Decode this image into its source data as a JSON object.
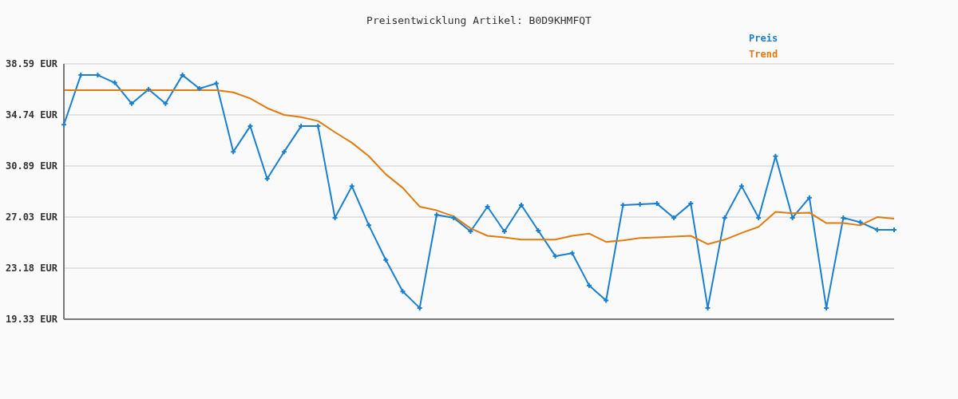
{
  "chart_data": {
    "type": "line",
    "title": "Preisentwicklung Artikel: B0D9KHMFQT",
    "categories": [
      null,
      null,
      null,
      null,
      null,
      null,
      null,
      null,
      null,
      null,
      null,
      null,
      null,
      null,
      null,
      null,
      null,
      null,
      null,
      null,
      null,
      null,
      null,
      null,
      null,
      null,
      null,
      null,
      null,
      null,
      null,
      null,
      null,
      null,
      null,
      null,
      null,
      null,
      null,
      null,
      null,
      null,
      null,
      null,
      null,
      null,
      null,
      null,
      null,
      null
    ],
    "series": [
      {
        "name": "Preis",
        "color": "#1a7fcf",
        "marker": "cross",
        "values": [
          34.0,
          37.74,
          37.74,
          37.17,
          35.59,
          36.66,
          35.59,
          37.74,
          36.72,
          37.12,
          31.96,
          33.89,
          29.92,
          31.96,
          33.89,
          33.89,
          26.98,
          29.36,
          26.41,
          23.8,
          21.42,
          20.18,
          27.2,
          26.98,
          25.95,
          27.82,
          25.95,
          27.94,
          26.01,
          24.09,
          24.31,
          21.88,
          20.74,
          27.94,
          27.99,
          28.05,
          26.98,
          28.05,
          20.18,
          26.98,
          29.36,
          26.98,
          31.62,
          26.98,
          28.5,
          20.18,
          26.98,
          26.64,
          26.07,
          26.07
        ]
      },
      {
        "name": "Trend",
        "color": "#e07b10",
        "marker": "none",
        "values": [
          36.61,
          36.61,
          36.61,
          36.61,
          36.61,
          36.61,
          36.61,
          36.61,
          36.61,
          36.61,
          36.44,
          35.98,
          35.25,
          34.74,
          34.57,
          34.28,
          33.43,
          32.64,
          31.62,
          30.26,
          29.24,
          27.82,
          27.54,
          27.09,
          26.18,
          25.62,
          25.5,
          25.33,
          25.33,
          25.33,
          25.62,
          25.79,
          25.16,
          25.28,
          25.45,
          25.5,
          25.56,
          25.62,
          24.99,
          25.33,
          25.84,
          26.3,
          27.43,
          27.32,
          27.37,
          26.58,
          26.58,
          26.41,
          27.03,
          26.92
        ]
      }
    ],
    "ylim": [
      19.33,
      38.59
    ],
    "yticks": [
      {
        "value": 19.33,
        "label": "19.33 EUR"
      },
      {
        "value": 23.18,
        "label": "23.18 EUR"
      },
      {
        "value": 27.03,
        "label": "27.03 EUR"
      },
      {
        "value": 30.89,
        "label": "30.89 EUR"
      },
      {
        "value": 34.74,
        "label": "34.74 EUR"
      },
      {
        "value": 38.59,
        "label": "38.59 EUR"
      }
    ],
    "grid": "y",
    "legend": "top right",
    "tick_labels": "y",
    "line_style": "solid"
  }
}
